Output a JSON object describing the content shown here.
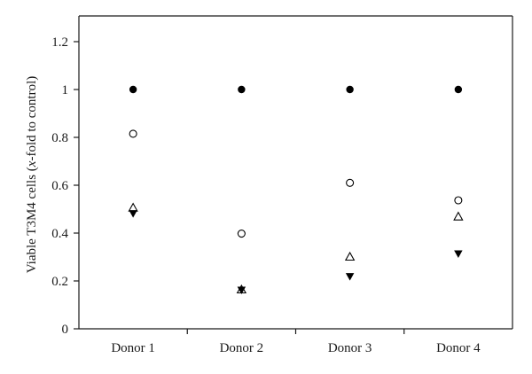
{
  "chart_data": {
    "type": "scatter",
    "categories": [
      "Donor 1",
      "Donor 2",
      "Donor 3",
      "Donor 4"
    ],
    "ylabel_parts": [
      "Viable T3M4 cells (",
      "x",
      "-fold to control)"
    ],
    "ylim": [
      0,
      1.3
    ],
    "yticks": [
      0,
      0.2,
      0.4,
      0.6,
      0.8,
      1,
      1.2
    ],
    "ytick_labels": [
      "0",
      "0.2",
      "0.4",
      "0.6",
      "0.8",
      "1",
      "1.2"
    ],
    "grid": false,
    "legend": "none",
    "series": [
      {
        "marker": "filled-circle",
        "values": [
          1.0,
          1.0,
          1.0,
          1.0
        ]
      },
      {
        "marker": "open-circle",
        "values": [
          0.815,
          0.398,
          0.61,
          0.537
        ]
      },
      {
        "marker": "open-triangle-up",
        "values": [
          0.505,
          0.163,
          0.3,
          0.468
        ]
      },
      {
        "marker": "filled-triangle-down",
        "values": [
          0.483,
          0.163,
          0.22,
          0.315
        ]
      }
    ]
  }
}
